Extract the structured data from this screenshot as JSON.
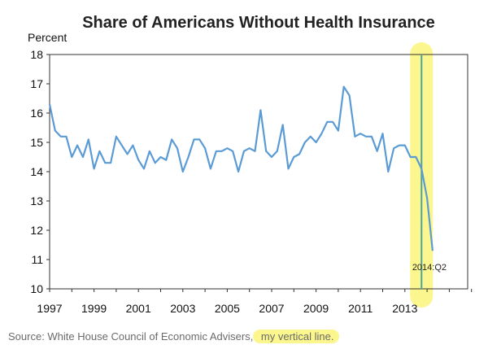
{
  "chart_data": {
    "type": "line",
    "title": "Share of Americans Without Health Insurance",
    "ylabel": "Percent",
    "xlabel": "",
    "xlim": [
      1997,
      2016
    ],
    "ylim": [
      10,
      18
    ],
    "yticks": [
      10,
      11,
      12,
      13,
      14,
      15,
      16,
      17,
      18
    ],
    "xticks": [
      1997,
      1999,
      2001,
      2003,
      2005,
      2007,
      2009,
      2011,
      2013
    ],
    "grid": false,
    "series": [
      {
        "color": "#5b9bd5",
        "x": [
          1997.0,
          1997.25,
          1997.5,
          1997.75,
          1998.0,
          1998.25,
          1998.5,
          1998.75,
          1999.0,
          1999.25,
          1999.5,
          1999.75,
          2000.0,
          2000.25,
          2000.5,
          2000.75,
          2001.0,
          2001.25,
          2001.5,
          2001.75,
          2002.0,
          2002.25,
          2002.5,
          2002.75,
          2003.0,
          2003.25,
          2003.5,
          2003.75,
          2004.0,
          2004.25,
          2004.5,
          2004.75,
          2005.0,
          2005.25,
          2005.5,
          2005.75,
          2006.0,
          2006.25,
          2006.5,
          2006.75,
          2007.0,
          2007.25,
          2007.5,
          2007.75,
          2008.0,
          2008.25,
          2008.5,
          2008.75,
          2009.0,
          2009.25,
          2009.5,
          2009.75,
          2010.0,
          2010.25,
          2010.5,
          2010.75,
          2011.0,
          2011.25,
          2011.5,
          2011.75,
          2012.0,
          2012.25,
          2012.5,
          2012.75,
          2013.0,
          2013.25,
          2013.5,
          2013.75,
          2014.0,
          2014.25
        ],
        "values": [
          16.3,
          15.4,
          15.2,
          15.2,
          14.5,
          14.9,
          14.5,
          15.1,
          14.1,
          14.7,
          14.3,
          14.3,
          15.2,
          14.9,
          14.6,
          14.9,
          14.4,
          14.1,
          14.7,
          14.3,
          14.5,
          14.4,
          15.1,
          14.8,
          14.0,
          14.5,
          15.1,
          15.1,
          14.8,
          14.1,
          14.7,
          14.7,
          14.8,
          14.7,
          14.0,
          14.7,
          14.8,
          14.7,
          16.1,
          14.7,
          14.5,
          14.7,
          15.6,
          14.1,
          14.5,
          14.6,
          15.0,
          15.2,
          15.0,
          15.3,
          15.7,
          15.7,
          15.4,
          16.9,
          16.6,
          15.2,
          15.3,
          15.2,
          15.2,
          14.7,
          15.3,
          14.0,
          14.8,
          14.9,
          14.9,
          14.5,
          14.5,
          14.1,
          13.1,
          11.3
        ]
      }
    ],
    "annotation": {
      "text": "2014:Q2",
      "x": 2014.25,
      "y": 11.3
    },
    "vertical_line": {
      "x": 2013.75,
      "y_from": 10,
      "y_to": 18,
      "color": "#4ea3a0"
    },
    "highlight_color": "#fbf68e"
  },
  "source": {
    "text": "Source: White House Council of Economic Advisers",
    "separator": ",",
    "highlight": " my vertical line."
  }
}
